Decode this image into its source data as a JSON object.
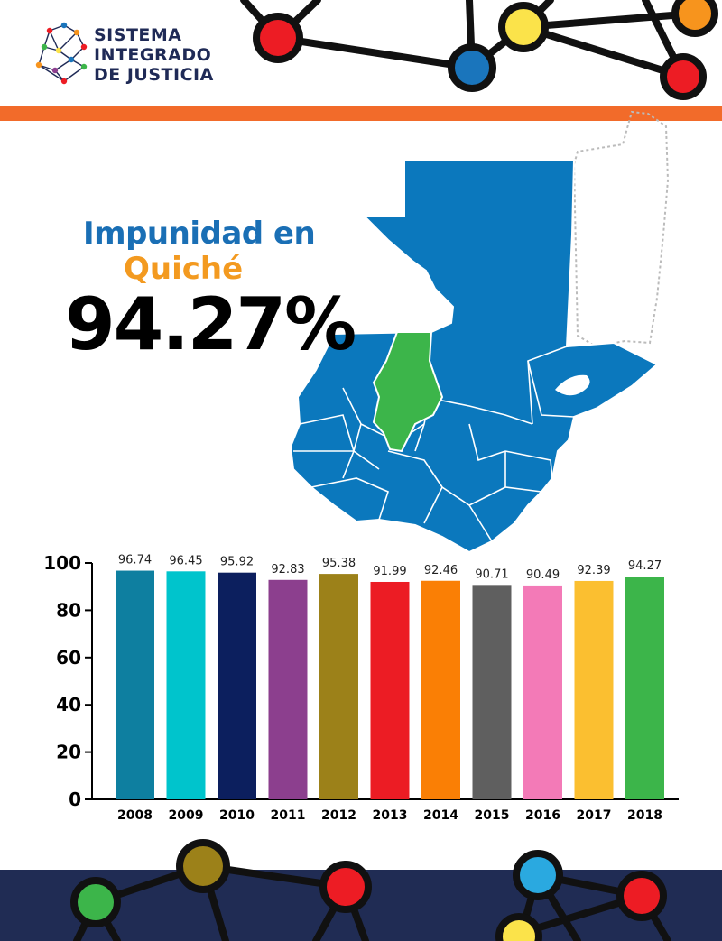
{
  "header": {
    "logo_lines": [
      "SISTEMA",
      "INTEGRADO",
      "DE JUSTICIA"
    ]
  },
  "headline": {
    "line1": "Impunidad en",
    "line2": "Quiché",
    "value": "94.27%"
  },
  "colors": {
    "brand_navy": "#1f2a56",
    "accent_orange": "#f26b2a",
    "map_blue": "#0b78bd",
    "map_highlight": "#3cb54a"
  },
  "chart_data": {
    "type": "bar",
    "categories": [
      "2008",
      "2009",
      "2010",
      "2011",
      "2012",
      "2013",
      "2014",
      "2015",
      "2016",
      "2017",
      "2018"
    ],
    "values": [
      96.74,
      96.45,
      95.92,
      92.83,
      95.38,
      91.99,
      92.46,
      90.71,
      90.49,
      92.39,
      94.27
    ],
    "value_labels": [
      "96.74",
      "96.45",
      "95.92",
      "92.83",
      "95.38",
      "91.99",
      "92.46",
      "90.71",
      "90.49",
      "92.39",
      "94.27"
    ],
    "bar_colors": [
      "#0e7fa0",
      "#00c4cc",
      "#0c1f5e",
      "#8c3f8e",
      "#9c8119",
      "#ec1c24",
      "#fa7f05",
      "#5f5f5f",
      "#f37ab7",
      "#fbbf30",
      "#3cb54a"
    ],
    "ylim": [
      0,
      100
    ],
    "yticks": [
      "0",
      "20",
      "40",
      "60",
      "80",
      "100"
    ],
    "title": "",
    "xlabel": "",
    "ylabel": "",
    "grid": false,
    "legend": "none"
  }
}
